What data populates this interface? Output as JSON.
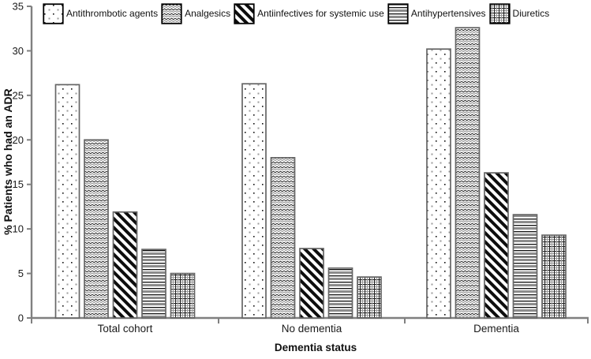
{
  "chart_data": {
    "type": "bar",
    "title": "",
    "categories": [
      "Total cohort",
      "No dementia",
      "Dementia"
    ],
    "series": [
      {
        "name": "Antithrombotic agents",
        "pattern": "dots",
        "values": [
          26.2,
          26.3,
          30.2
        ]
      },
      {
        "name": "Analgesics",
        "pattern": "waves",
        "values": [
          20.0,
          18.0,
          32.6
        ]
      },
      {
        "name": "Antiinfectives for systemic use",
        "pattern": "diagonal",
        "values": [
          11.9,
          7.8,
          16.3
        ]
      },
      {
        "name": "Antihypertensives",
        "pattern": "hlines",
        "values": [
          7.7,
          5.6,
          11.6
        ]
      },
      {
        "name": "Diuretics",
        "pattern": "grid",
        "values": [
          5.0,
          4.6,
          9.3
        ]
      }
    ],
    "xlabel": "Dementia status",
    "ylabel": "% Patients who had an ADR",
    "ylim": [
      0,
      35
    ],
    "yticks": [
      0,
      5,
      10,
      15,
      20,
      25,
      30,
      35
    ],
    "legend_position": "top",
    "grid": false,
    "colors": {
      "background": "#ffffff",
      "axis": "#808080",
      "text": "#1a1a1a",
      "bar_border": "#666666",
      "swatch_border": "#000000",
      "pattern_black": "#111111",
      "pattern_gray": "#8c8c8c"
    }
  }
}
